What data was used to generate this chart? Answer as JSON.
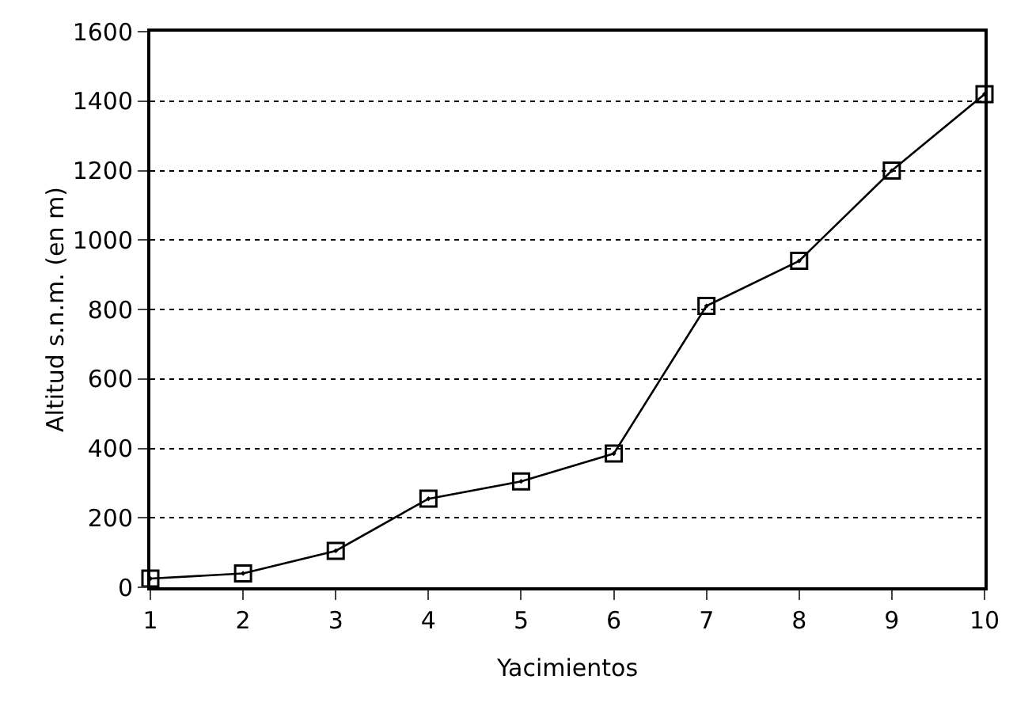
{
  "chart_data": {
    "type": "line",
    "xlabel": "Yacimientos",
    "ylabel": "Altitud s.n.m. (en m)",
    "x": [
      1,
      2,
      3,
      4,
      5,
      6,
      7,
      8,
      9,
      10
    ],
    "values": [
      25,
      40,
      105,
      255,
      305,
      385,
      810,
      940,
      1200,
      1420
    ],
    "color": "#000000",
    "marker": "square",
    "line_style": "solid",
    "xlim": [
      1,
      10
    ],
    "xticks": [
      1,
      2,
      3,
      4,
      5,
      6,
      7,
      8,
      9,
      10
    ],
    "ylim": [
      0,
      1600
    ],
    "yticks": [
      0,
      200,
      400,
      600,
      800,
      1000,
      1200,
      1400,
      1600
    ],
    "grid": "y"
  }
}
